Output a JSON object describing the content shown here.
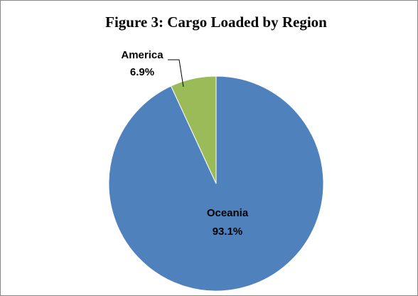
{
  "chart_data": {
    "type": "pie",
    "title": "Figure 3: Cargo Loaded by Region",
    "categories": [
      "Oceania",
      "America"
    ],
    "values": [
      93.1,
      6.9
    ],
    "value_labels": [
      "93.1%",
      "6.9%"
    ],
    "colors": [
      "#4f81bd",
      "#9bbb59"
    ]
  }
}
